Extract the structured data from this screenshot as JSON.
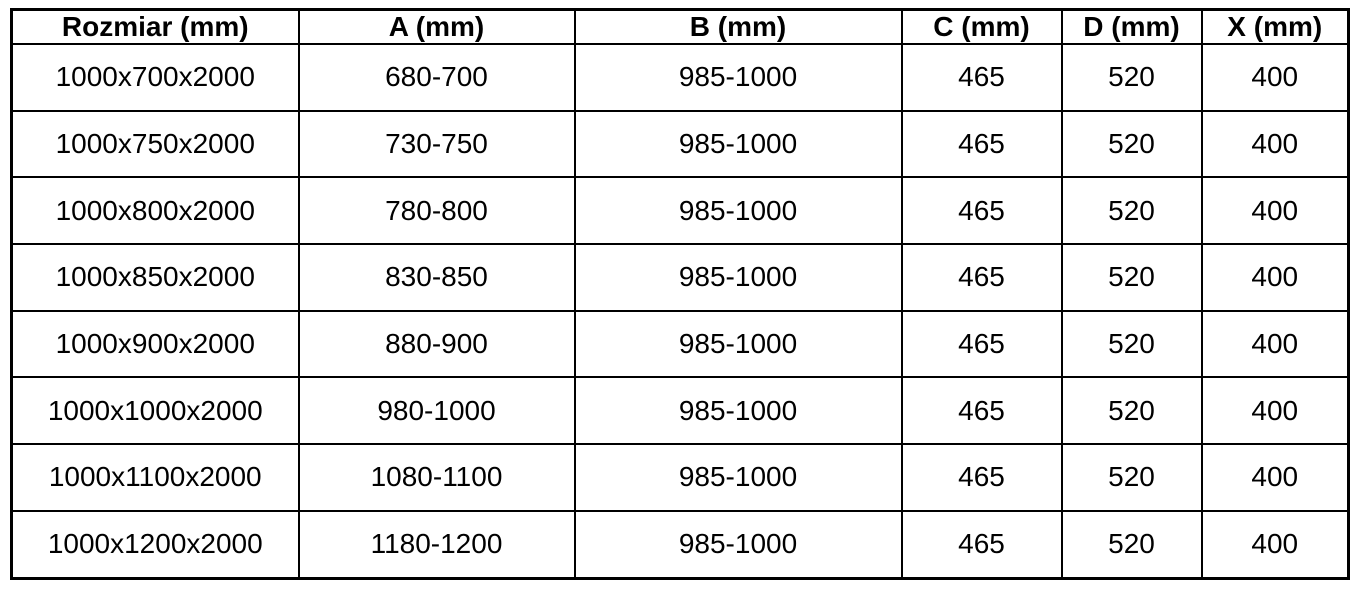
{
  "colors": {
    "border": "#000000",
    "text": "#000000",
    "background": "#ffffff"
  },
  "table": {
    "headers": [
      "Rozmiar (mm)",
      "A (mm)",
      "B (mm)",
      "C (mm)",
      "D (mm)",
      "X (mm)"
    ],
    "rows": [
      [
        "1000x700x2000",
        "680-700",
        "985-1000",
        "465",
        "520",
        "400"
      ],
      [
        "1000x750x2000",
        "730-750",
        "985-1000",
        "465",
        "520",
        "400"
      ],
      [
        "1000x800x2000",
        "780-800",
        "985-1000",
        "465",
        "520",
        "400"
      ],
      [
        "1000x850x2000",
        "830-850",
        "985-1000",
        "465",
        "520",
        "400"
      ],
      [
        "1000x900x2000",
        "880-900",
        "985-1000",
        "465",
        "520",
        "400"
      ],
      [
        "1000x1000x2000",
        "980-1000",
        "985-1000",
        "465",
        "520",
        "400"
      ],
      [
        "1000x1100x2000",
        "1080-1100",
        "985-1000",
        "465",
        "520",
        "400"
      ],
      [
        "1000x1200x2000",
        "1180-1200",
        "985-1000",
        "465",
        "520",
        "400"
      ]
    ]
  },
  "chart_data": {
    "type": "table",
    "columns": [
      "Rozmiar (mm)",
      "A (mm)",
      "B (mm)",
      "C (mm)",
      "D (mm)",
      "X (mm)"
    ],
    "rows": [
      [
        "1000x700x2000",
        "680-700",
        "985-1000",
        "465",
        "520",
        "400"
      ],
      [
        "1000x750x2000",
        "730-750",
        "985-1000",
        "465",
        "520",
        "400"
      ],
      [
        "1000x800x2000",
        "780-800",
        "985-1000",
        "465",
        "520",
        "400"
      ],
      [
        "1000x850x2000",
        "830-850",
        "985-1000",
        "465",
        "520",
        "400"
      ],
      [
        "1000x900x2000",
        "880-900",
        "985-1000",
        "465",
        "520",
        "400"
      ],
      [
        "1000x1000x2000",
        "980-1000",
        "985-1000",
        "465",
        "520",
        "400"
      ],
      [
        "1000x1100x2000",
        "1080-1100",
        "985-1000",
        "465",
        "520",
        "400"
      ],
      [
        "1000x1200x2000",
        "1180-1200",
        "985-1000",
        "465",
        "520",
        "400"
      ]
    ]
  }
}
